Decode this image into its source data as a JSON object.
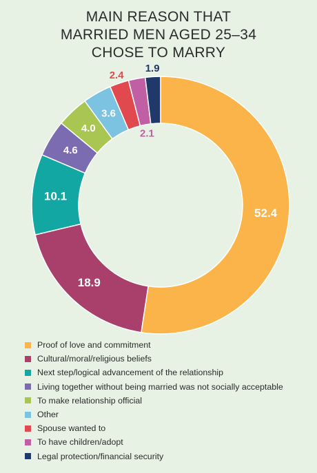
{
  "title_lines": [
    "MAIN REASON THAT",
    "MARRIED MEN AGED 25–34",
    "CHOSE TO MARRY"
  ],
  "chart_data": {
    "type": "pie",
    "title": "MAIN REASON THAT MARRIED MEN AGED 25–34 CHOSE TO MARRY",
    "labels": [
      "Proof of love and commitment",
      "Cultural/moral/religious beliefs",
      "Next step/logical advancement of the relationship",
      "Living together without being married was not socially acceptable",
      "To make relationship official",
      "Other",
      "Spouse wanted to",
      "To have children/adopt",
      "Legal protection/financial security"
    ],
    "values": [
      52.4,
      18.9,
      10.1,
      4.6,
      4.0,
      3.6,
      2.4,
      2.1,
      1.9
    ],
    "value_labels": [
      "52.4",
      "18.9",
      "10.1",
      "4.6",
      "4.0",
      "3.6",
      "2.4",
      "2.1",
      "1.9"
    ],
    "colors": [
      "#fbb44a",
      "#a8406b",
      "#13a7a3",
      "#7b6bb1",
      "#a9c653",
      "#7cc3e2",
      "#e04a4f",
      "#c15fa4",
      "#21386b"
    ],
    "donut": true,
    "legend_position": "bottom-left"
  }
}
